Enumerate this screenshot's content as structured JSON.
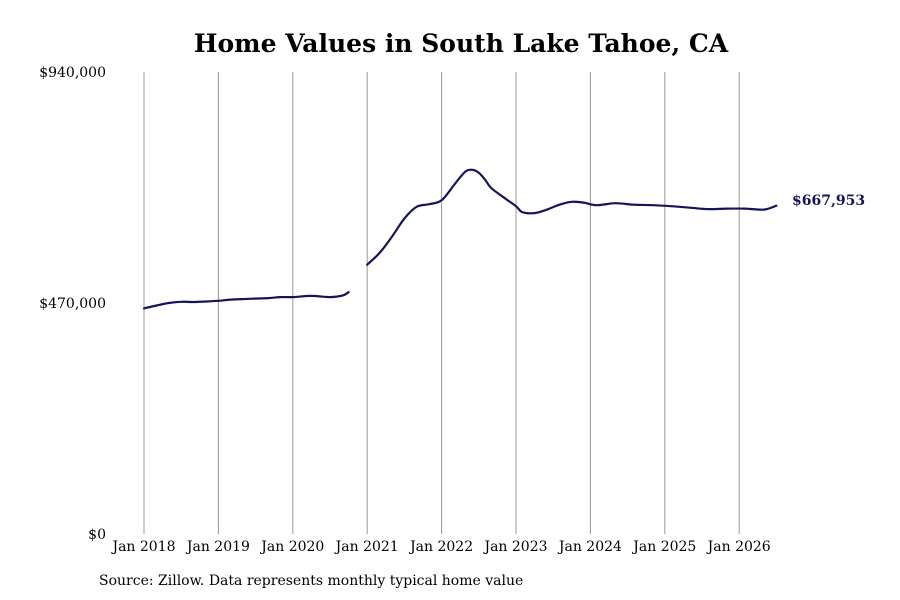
{
  "chart_data": {
    "type": "line",
    "title": "Home Values in South Lake Tahoe, CA",
    "xlabel": "",
    "ylabel": "",
    "ylim": [
      0,
      940000
    ],
    "xlim": [
      "2018-01",
      "2026-07"
    ],
    "y_ticks": [
      {
        "value": 0,
        "label": "$0"
      },
      {
        "value": 470000,
        "label": "$470,000"
      },
      {
        "value": 940000,
        "label": "$940,000"
      }
    ],
    "x_ticks": [
      {
        "date": "2018-01",
        "label": "Jan 2018"
      },
      {
        "date": "2019-01",
        "label": "Jan 2019"
      },
      {
        "date": "2020-01",
        "label": "Jan 2020"
      },
      {
        "date": "2021-01",
        "label": "Jan 2021"
      },
      {
        "date": "2022-01",
        "label": "Jan 2022"
      },
      {
        "date": "2023-01",
        "label": "Jan 2023"
      },
      {
        "date": "2024-01",
        "label": "Jan 2024"
      },
      {
        "date": "2025-01",
        "label": "Jan 2025"
      },
      {
        "date": "2026-01",
        "label": "Jan 2026"
      }
    ],
    "grid": {
      "vertical": true,
      "horizontal": false
    },
    "line_color": "#14145a",
    "grid_color": "#999999",
    "series": [
      {
        "segments": [
          {
            "points": [
              {
                "date": "2018-01",
                "value": 459000
              },
              {
                "date": "2018-03",
                "value": 465000
              },
              {
                "date": "2018-05",
                "value": 470000
              },
              {
                "date": "2018-07",
                "value": 472500
              },
              {
                "date": "2018-09",
                "value": 472000
              },
              {
                "date": "2018-11",
                "value": 473000
              },
              {
                "date": "2019-01",
                "value": 474500
              },
              {
                "date": "2019-03",
                "value": 477000
              },
              {
                "date": "2019-06",
                "value": 478500
              },
              {
                "date": "2019-09",
                "value": 480000
              },
              {
                "date": "2019-11",
                "value": 482000
              },
              {
                "date": "2020-01",
                "value": 482000
              },
              {
                "date": "2020-04",
                "value": 484500
              },
              {
                "date": "2020-07",
                "value": 482000
              },
              {
                "date": "2020-09",
                "value": 485000
              },
              {
                "date": "2020-10",
                "value": 492000
              }
            ]
          },
          {
            "points": [
              {
                "date": "2021-01",
                "value": 548000
              },
              {
                "date": "2021-03",
                "value": 572000
              },
              {
                "date": "2021-05",
                "value": 605000
              },
              {
                "date": "2021-07",
                "value": 642000
              },
              {
                "date": "2021-09",
                "value": 666000
              },
              {
                "date": "2021-11",
                "value": 671000
              },
              {
                "date": "2022-01",
                "value": 679000
              },
              {
                "date": "2022-03",
                "value": 710000
              },
              {
                "date": "2022-04",
                "value": 726000
              },
              {
                "date": "2022-05",
                "value": 739000
              },
              {
                "date": "2022-06",
                "value": 741000
              },
              {
                "date": "2022-07",
                "value": 735000
              },
              {
                "date": "2022-08",
                "value": 721000
              },
              {
                "date": "2022-09",
                "value": 704000
              },
              {
                "date": "2022-11",
                "value": 685000
              },
              {
                "date": "2023-01",
                "value": 667000
              },
              {
                "date": "2023-02",
                "value": 655000
              },
              {
                "date": "2023-04",
                "value": 653000
              },
              {
                "date": "2023-06",
                "value": 660000
              },
              {
                "date": "2023-08",
                "value": 670000
              },
              {
                "date": "2023-10",
                "value": 676000
              },
              {
                "date": "2023-12",
                "value": 674000
              },
              {
                "date": "2024-02",
                "value": 669000
              },
              {
                "date": "2024-05",
                "value": 673000
              },
              {
                "date": "2024-08",
                "value": 670000
              },
              {
                "date": "2024-11",
                "value": 669000
              },
              {
                "date": "2025-02",
                "value": 667000
              },
              {
                "date": "2025-05",
                "value": 664000
              },
              {
                "date": "2025-08",
                "value": 661000
              },
              {
                "date": "2025-11",
                "value": 662000
              },
              {
                "date": "2026-02",
                "value": 662000
              },
              {
                "date": "2026-05",
                "value": 660000
              },
              {
                "date": "2026-07",
                "value": 667953
              }
            ]
          }
        ]
      }
    ],
    "end_label": "$667,953",
    "source_text": "Source: Zillow. Data represents monthly typical home value"
  }
}
